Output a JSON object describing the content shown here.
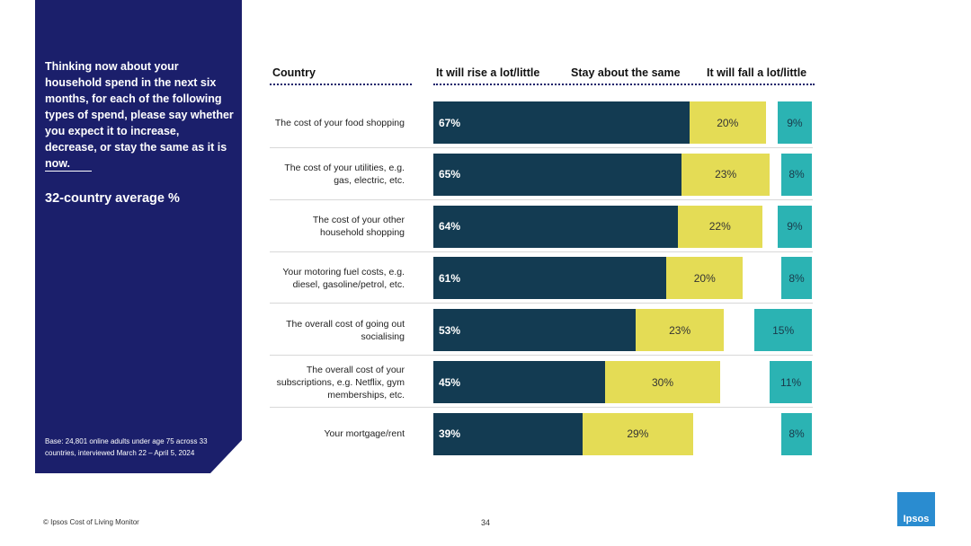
{
  "sidebar": {
    "question": "Thinking now about your household spend in the next six months, for each of the following types of spend, please say whether you expect it to increase, decrease, or stay the same as it is now.",
    "average_label": "32-country average %",
    "base": "Base: 24,801 online adults under age 75 across 33 countries, interviewed March 22 – April 5, 2024"
  },
  "footer": {
    "source": "© Ipsos Cost of Living Monitor",
    "page": "34",
    "logo": "Ipsos"
  },
  "colors": {
    "rise": "#133b52",
    "same": "#e4dc55",
    "fall": "#2bb3b3",
    "sidebar": "#1b1f6b"
  },
  "chart_data": {
    "type": "bar",
    "stacked": true,
    "headers": {
      "category": "Country",
      "rise": "It will rise a lot/little",
      "same": "Stay about the same",
      "fall": "It will fall a lot/little"
    },
    "categories": [
      "The cost of your food shopping",
      "The cost of your utilities, e.g. gas, electric, etc.",
      "The cost of your other household shopping",
      "Your motoring fuel costs, e.g. diesel, gasoline/petrol, etc.",
      "The overall cost of going out socialising",
      "The overall cost of your subscriptions, e.g. Netflix, gym memberships, etc.",
      "Your mortgage/rent"
    ],
    "series": [
      {
        "name": "It will rise a lot/little",
        "values": [
          67,
          65,
          64,
          61,
          53,
          45,
          39
        ]
      },
      {
        "name": "Stay about the same",
        "values": [
          20,
          23,
          22,
          20,
          23,
          30,
          29
        ]
      },
      {
        "name": "It will fall a lot/little",
        "values": [
          9,
          8,
          9,
          8,
          15,
          11,
          8
        ]
      }
    ],
    "unit": "%"
  }
}
